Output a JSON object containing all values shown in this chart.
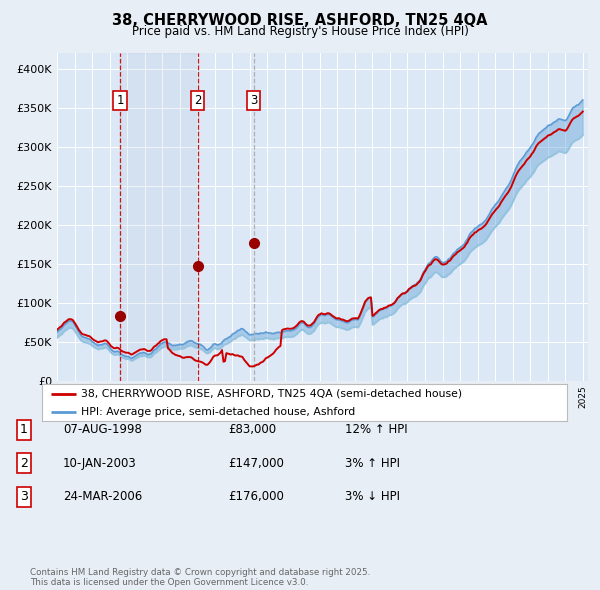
{
  "title": "38, CHERRYWOOD RISE, ASHFORD, TN25 4QA",
  "subtitle": "Price paid vs. HM Land Registry's House Price Index (HPI)",
  "background_color": "#e8eef5",
  "plot_bg_color": "#dce8f5",
  "grid_color": "#ffffff",
  "ylim": [
    0,
    420000
  ],
  "yticks": [
    0,
    50000,
    100000,
    150000,
    200000,
    250000,
    300000,
    350000,
    400000
  ],
  "x_start_year": 1995,
  "x_end_year": 2025,
  "sale_year_floats": [
    1998.6,
    2003.03,
    2006.23
  ],
  "sale_prices": [
    83000,
    147000,
    176000
  ],
  "sale_labels": [
    "1",
    "2",
    "3"
  ],
  "sale_line_colors": [
    "#cc0000",
    "#cc0000",
    "#aaaaaa"
  ],
  "hpi_line_color": "#5b9bd5",
  "hpi_line_color2": "#92c5de",
  "price_line_color": "#cc0000",
  "legend_entries": [
    "38, CHERRYWOOD RISE, ASHFORD, TN25 4QA (semi-detached house)",
    "HPI: Average price, semi-detached house, Ashford"
  ],
  "table_data": [
    [
      "1",
      "07-AUG-1998",
      "£83,000",
      "12% ↑ HPI"
    ],
    [
      "2",
      "10-JAN-2003",
      "£147,000",
      "3% ↑ HPI"
    ],
    [
      "3",
      "24-MAR-2006",
      "£176,000",
      "3% ↓ HPI"
    ]
  ],
  "footnote": "Contains HM Land Registry data © Crown copyright and database right 2025.\nThis data is licensed under the Open Government Licence v3.0."
}
